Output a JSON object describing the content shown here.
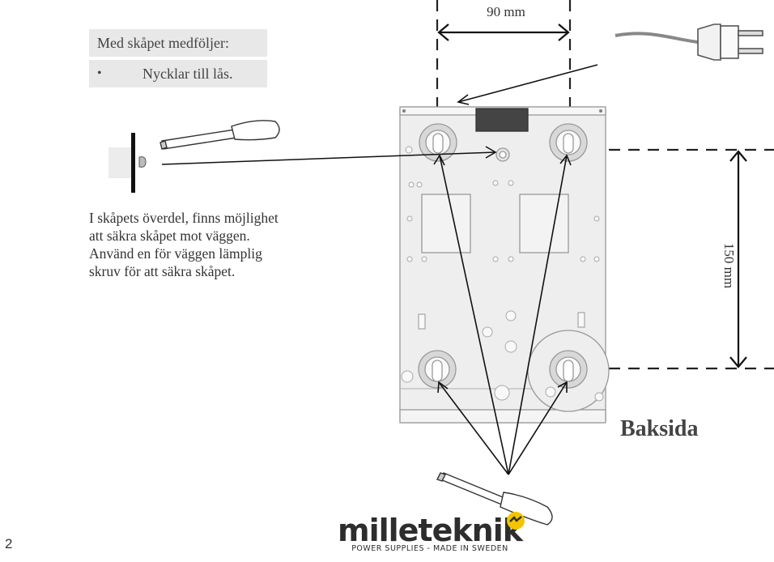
{
  "included_box": {
    "title": "Med skåpet medföljer:",
    "items": [
      "Nycklar till lås."
    ]
  },
  "note": {
    "lines": [
      "I skåpets överdel, finns möjlighet",
      "att säkra skåpet mot väggen.",
      "Använd en för väggen lämplig",
      "skruv för att säkra skåpet."
    ]
  },
  "dimensions": {
    "horizontal": "90 mm",
    "vertical": "150 mm"
  },
  "view_label": "Baksida",
  "page_number": "2",
  "logo": {
    "name": "milleteknik",
    "tagline": "POWER SUPPLIES - MADE IN SWEDEN"
  },
  "colors": {
    "box_background": "#e8e8e8",
    "cabinet_fill": "#eeeeee",
    "line": "#222222",
    "logo_accent": "#f2c500"
  }
}
